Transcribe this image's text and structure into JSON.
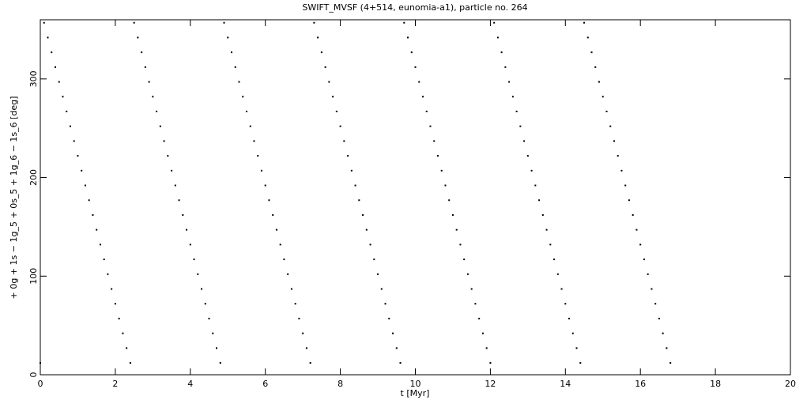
{
  "chart_data": {
    "type": "scatter",
    "title": "SWIFT_MVSF (4+514, eunomia-a1), particle no. 264",
    "x_label": "t [Myr]",
    "y_label": "+ 0g + 1s − 1g_5 + 0s_5 + 1g_6 − 1s_6 [deg]",
    "xlim": [
      0,
      20
    ],
    "xticks": [
      0,
      2,
      4,
      6,
      8,
      10,
      12,
      14,
      16,
      18,
      20
    ],
    "ylim": [
      0,
      360
    ],
    "yticks": [
      0,
      100,
      200,
      300
    ],
    "color": "#000000",
    "x": [
      0,
      0.1,
      0.2,
      0.3,
      0.4,
      0.5,
      0.6,
      0.7,
      0.8,
      0.9,
      1,
      1.1,
      1.2,
      1.3,
      1.4,
      1.5,
      1.6,
      1.7,
      1.8,
      1.9,
      2,
      2.1,
      2.2,
      2.3,
      2.4,
      2.5,
      2.6,
      2.7,
      2.8,
      2.9,
      3,
      3.1,
      3.2,
      3.3,
      3.4,
      3.5,
      3.6,
      3.7,
      3.8,
      3.9,
      4,
      4.1,
      4.2,
      4.3,
      4.4,
      4.5,
      4.6,
      4.7,
      4.8,
      4.9,
      5,
      5.1,
      5.2,
      5.3,
      5.4,
      5.5,
      5.6,
      5.7,
      5.8,
      5.9,
      6,
      6.1,
      6.2,
      6.3,
      6.4,
      6.5,
      6.6,
      6.7,
      6.8,
      6.9,
      7,
      7.1,
      7.2,
      7.3,
      7.4,
      7.5,
      7.6,
      7.7,
      7.8,
      7.9,
      8,
      8.1,
      8.2,
      8.3,
      8.4,
      8.5,
      8.6,
      8.7,
      8.8,
      8.9,
      9,
      9.1,
      9.2,
      9.3,
      9.4,
      9.5,
      9.6,
      9.7,
      9.8,
      9.9,
      10,
      10.1,
      10.2,
      10.3,
      10.4,
      10.5,
      10.6,
      10.7,
      10.8,
      10.9,
      11,
      11.1,
      11.2,
      11.3,
      11.4,
      11.5,
      11.6,
      11.7,
      11.8,
      11.9,
      12,
      12.1,
      12.2,
      12.3,
      12.4,
      12.5,
      12.6,
      12.7,
      12.8,
      12.9,
      13,
      13.1,
      13.2,
      13.3,
      13.4,
      13.5,
      13.6,
      13.7,
      13.8,
      13.9,
      14,
      14.1,
      14.2,
      14.3,
      14.4,
      14.5,
      14.6,
      14.7,
      14.8,
      14.9,
      15,
      15.1,
      15.2,
      15.3,
      15.4,
      15.5,
      15.6,
      15.7,
      15.8,
      15.9,
      16,
      16.1,
      16.2,
      16.3,
      16.4,
      16.5,
      16.6,
      16.7,
      16.8
    ],
    "y": [
      12,
      357,
      342,
      327,
      312,
      297,
      282,
      267,
      252,
      237,
      222,
      207,
      192,
      177,
      162,
      147,
      132,
      117,
      102,
      87,
      72,
      57,
      42,
      27,
      12,
      357,
      342,
      327,
      312,
      297,
      282,
      267,
      252,
      237,
      222,
      207,
      192,
      177,
      162,
      147,
      132,
      117,
      102,
      87,
      72,
      57,
      42,
      27,
      12,
      357,
      342,
      327,
      312,
      297,
      282,
      267,
      252,
      237,
      222,
      207,
      192,
      177,
      162,
      147,
      132,
      117,
      102,
      87,
      72,
      57,
      42,
      27,
      12,
      357,
      342,
      327,
      312,
      297,
      282,
      267,
      252,
      237,
      222,
      207,
      192,
      177,
      162,
      147,
      132,
      117,
      102,
      87,
      72,
      57,
      42,
      27,
      12,
      357,
      342,
      327,
      312,
      297,
      282,
      267,
      252,
      237,
      222,
      207,
      192,
      177,
      162,
      147,
      132,
      117,
      102,
      87,
      72,
      57,
      42,
      27,
      12,
      357,
      342,
      327,
      312,
      297,
      282,
      267,
      252,
      237,
      222,
      207,
      192,
      177,
      162,
      147,
      132,
      117,
      102,
      87,
      72,
      57,
      42,
      27,
      12,
      357,
      342,
      327,
      312,
      297,
      282,
      267,
      252,
      237,
      222,
      207,
      192,
      177,
      162,
      147,
      132,
      117,
      102,
      87,
      72,
      57,
      42,
      27,
      12
    ]
  }
}
